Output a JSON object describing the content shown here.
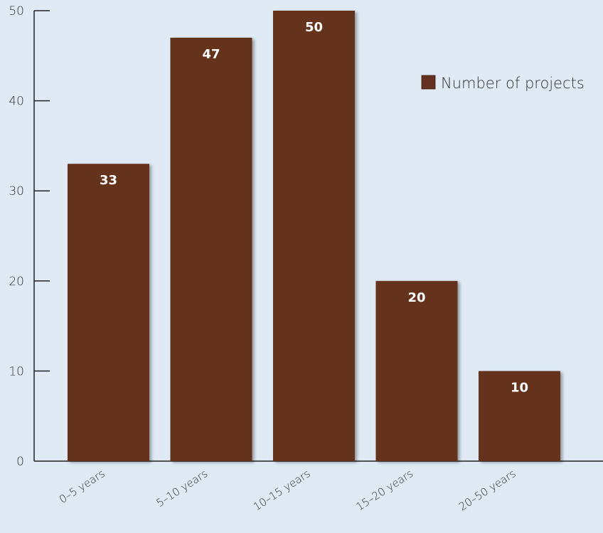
{
  "chart_data": {
    "type": "bar",
    "categories": [
      "0–5 years",
      "5–10 years",
      "10–15 years",
      "15–20 years",
      "20–50 years"
    ],
    "series": [
      {
        "name": "Number of projects",
        "values": [
          33,
          47,
          50,
          20,
          10
        ]
      }
    ],
    "data_labels": [
      "33",
      "47",
      "50",
      "20",
      "10"
    ],
    "ylim": [
      0,
      50
    ],
    "yticks": [
      "0",
      "10",
      "20",
      "30",
      "40",
      "50"
    ],
    "legend_position": "top-right",
    "grid": false,
    "colors": {
      "bar": "#65301f",
      "background": "#dfeaf5",
      "axis": "#222222"
    }
  }
}
